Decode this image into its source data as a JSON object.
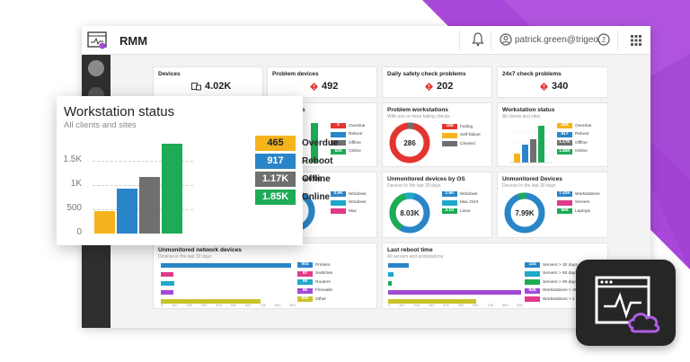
{
  "app": {
    "title": "RMM",
    "user": "patrick.green@trigeo..."
  },
  "colors": {
    "overdue": "#f5b41d",
    "reboot": "#2a85c8",
    "offline": "#6f6f6f",
    "online": "#1dab55",
    "problem_red": "#e3342f",
    "purple": "#a34ad6",
    "cyan": "#1fa8c9"
  },
  "stats": [
    {
      "title": "Devices",
      "value": "4.02K",
      "icon": "devices-icon"
    },
    {
      "title": "Problem devices",
      "value": "492",
      "icon": "warning-diamond-icon"
    },
    {
      "title": "Daily safety check problems",
      "value": "202",
      "icon": "warning-diamond-icon"
    },
    {
      "title": "24x7 check problems",
      "value": "340",
      "icon": "warning-diamond-icon"
    }
  ],
  "problem_workstations": {
    "title": "Problem workstations",
    "subtitle": "With one or more failing checks",
    "center": "286",
    "legend": [
      {
        "value": "186",
        "label": "Failing"
      },
      {
        "value": "",
        "label": "Self-failure"
      },
      {
        "value": "",
        "label": "Cleared"
      }
    ]
  },
  "servers_card": {
    "title_fragment": "us",
    "legend": [
      {
        "value": "2",
        "label": "Overdue"
      },
      {
        "value": "",
        "label": "Reboot"
      },
      {
        "value": "",
        "label": "Offline"
      },
      {
        "value": "520",
        "label": "Online"
      }
    ]
  },
  "workstation_status_small": {
    "title": "Workstation status",
    "subtitle": "All clients and sites",
    "legend": [
      {
        "value": "465",
        "label": "Overdue"
      },
      {
        "value": "917",
        "label": "Reboot"
      },
      {
        "value": "1.17K",
        "label": "Offline"
      },
      {
        "value": "1.85K",
        "label": "Online"
      }
    ]
  },
  "main_os": {
    "title_fragment": "main OS",
    "legend": [
      {
        "value": "3.9K",
        "label": "Windows"
      },
      {
        "value": "",
        "label": "Windows"
      },
      {
        "value": "",
        "label": "Mac"
      }
    ]
  },
  "unmonitored_os": {
    "title": "Unmonitored devices by OS",
    "subtitle": "Devices in the last 30 days",
    "center": "8.03K",
    "legend": [
      {
        "value": "2.9K",
        "label": "Windows"
      },
      {
        "value": "",
        "label": "Mac OSX"
      },
      {
        "value": "4.1K",
        "label": "Linux"
      }
    ]
  },
  "unmonitored_devices": {
    "title": "Unmonitored Devices",
    "subtitle": "Devices in the last 30 days",
    "center": "7.99K",
    "legend": [
      {
        "value": "7.42K",
        "label": "Workstations"
      },
      {
        "value": "",
        "label": "Servers"
      },
      {
        "value": "569",
        "label": "Laptops"
      }
    ]
  },
  "network_devices": {
    "title": "Unmonitored network devices",
    "subtitle": "Devices in the last 30 days",
    "legend": [
      {
        "value": "904",
        "label": "Printers"
      },
      {
        "value": "87",
        "label": "Switches"
      },
      {
        "value": "90",
        "label": "Routers"
      },
      {
        "value": "85",
        "label": "Firewalls"
      },
      {
        "value": "690",
        "label": "Other"
      }
    ],
    "axis": [
      "0",
      "100",
      "200",
      "300",
      "400",
      "500",
      "600",
      "700",
      "800",
      "900"
    ]
  },
  "last_reboot": {
    "title": "Last reboot time",
    "subtitle": "All servers and workstations",
    "legend": [
      {
        "value": "144",
        "label": "Servers > 30 days"
      },
      {
        "value": "",
        "label": "Servers > 60 days"
      },
      {
        "value": "",
        "label": "Servers > 90 days"
      },
      {
        "value": "945",
        "label": "Workstations > 30 d..."
      },
      {
        "value": "",
        "label": "Workstations > 1 ye..."
      }
    ],
    "axis": [
      "0",
      "100",
      "200",
      "300",
      "400",
      "500",
      "600",
      "700",
      "800",
      "900"
    ]
  },
  "chart_data": {
    "type": "bar",
    "title": "Workstation status",
    "subtitle": "All clients and sites",
    "categories": [
      "Overdue",
      "Reboot",
      "Offline",
      "Online"
    ],
    "values": [
      465,
      917,
      1170,
      1850
    ],
    "value_labels": [
      "465",
      "917",
      "1.17K",
      "1.85K"
    ],
    "yticks": [
      "0",
      "500",
      "1K",
      "1.5K"
    ],
    "ylim": [
      0,
      2000
    ]
  }
}
